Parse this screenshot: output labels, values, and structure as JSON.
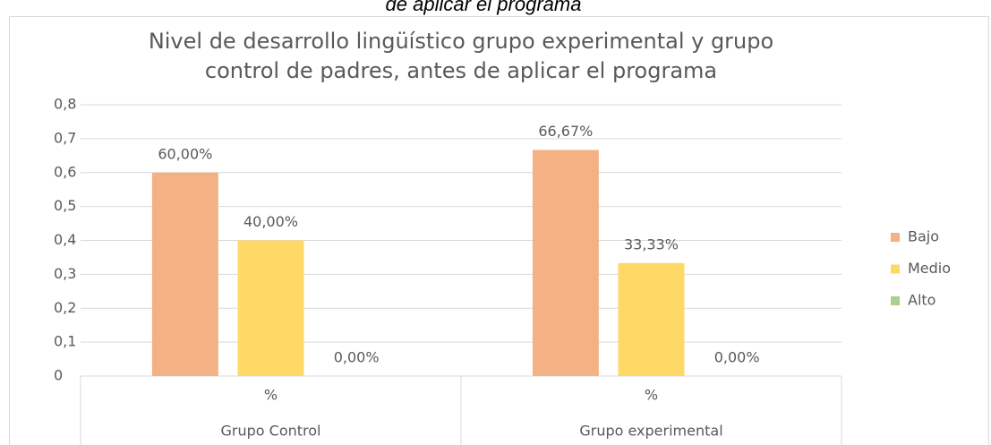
{
  "caption": "de aplicar el programa",
  "chart_data": {
    "type": "bar",
    "title": [
      "Nivel de desarrollo lingüístico grupo experimental y grupo",
      "control de padres, antes de aplicar el programa"
    ],
    "categories": [
      "%",
      "%"
    ],
    "groups": [
      "Grupo Control",
      "Grupo experimental"
    ],
    "series": [
      {
        "name": "Bajo",
        "color": "#f4b183",
        "values": [
          0.6,
          0.6667
        ],
        "value_labels": [
          "60,00%",
          "66,67%"
        ]
      },
      {
        "name": "Medio",
        "color": "#ffd966",
        "values": [
          0.4,
          0.3333
        ],
        "value_labels": [
          "40,00%",
          "33,33%"
        ]
      },
      {
        "name": "Alto",
        "color": "#a9d18e",
        "values": [
          0,
          0
        ],
        "value_labels": [
          "0,00%",
          "0,00%"
        ]
      }
    ],
    "ylim": [
      0,
      0.8
    ],
    "yticks": [
      0,
      {
        "value": 0.1,
        "label": "0,1"
      },
      {
        "value": 0.2,
        "label": "0,2"
      },
      {
        "value": 0.3,
        "label": "0,3"
      },
      {
        "value": 0.4,
        "label": "0,4"
      },
      {
        "value": 0.5,
        "label": "0,5"
      },
      {
        "value": 0.6,
        "label": "0,6"
      },
      {
        "value": 0.7,
        "label": "0,7"
      },
      {
        "value": 0.8,
        "label": "0,8"
      }
    ],
    "grid": true,
    "legend": "right"
  }
}
